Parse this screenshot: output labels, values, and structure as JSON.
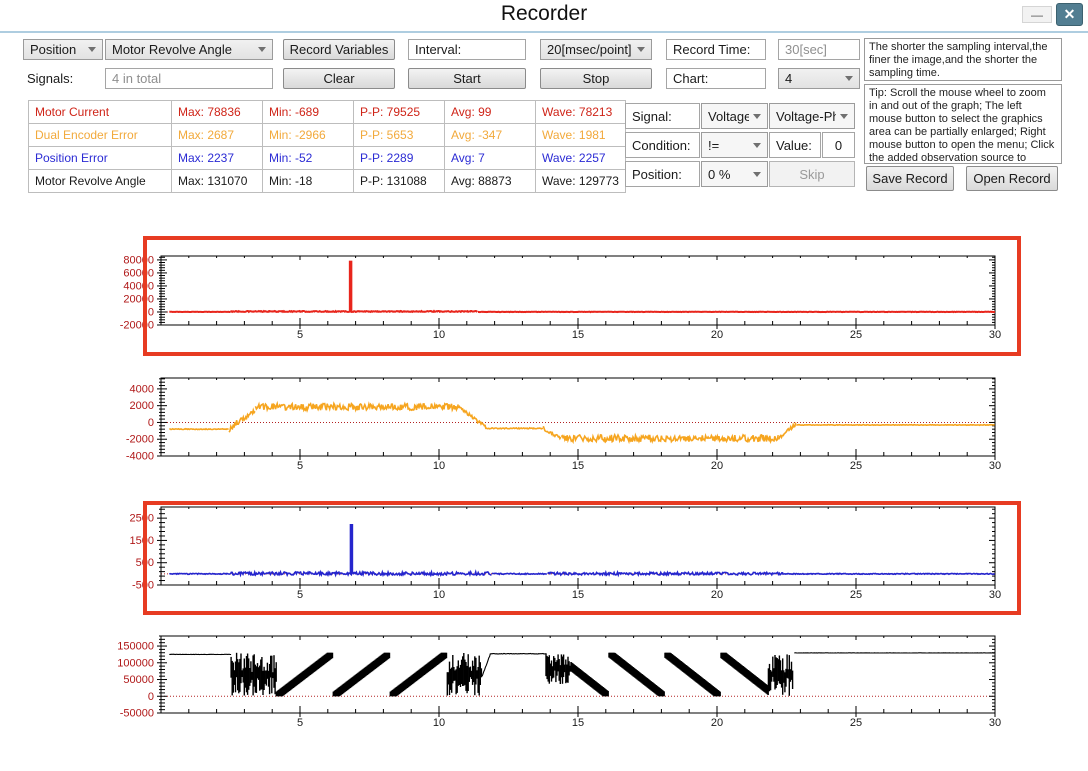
{
  "window": {
    "title": "Recorder"
  },
  "icons": {
    "minimize": "—",
    "close": "✕"
  },
  "colors": {
    "selection": "#e73b22",
    "axis_label": "#b01818",
    "zero_line": "#b22222"
  },
  "toolbar": {
    "position_dropdown": "Position",
    "source_dropdown": "Motor Revolve Angle",
    "record_variables": "Record Variables",
    "interval_label": "Interval:",
    "interval_value": "20[msec/point]",
    "record_time_label": "Record Time:",
    "record_time_value": "30[sec]",
    "signals_label": "Signals:",
    "signals_value": "4  in total",
    "clear": "Clear",
    "start": "Start",
    "stop": "Stop",
    "chart_label": "Chart:",
    "chart_count": "4"
  },
  "info": {
    "sampling_note": "The shorter the sampling interval,the finer the image,and the shorter the sampling time.",
    "tip": "Tip: Scroll the mouse wheel to zoom in and out of the graph; The left mouse button to select the graphics area can be partially enlarged; Right mouse button to open the menu; Click the added observation source to delete it."
  },
  "signal_table": {
    "rows": [
      {
        "name": "Motor Current",
        "color": "#cf2418",
        "max": "Max: 78836",
        "min": "Min: -689",
        "pp": "P-P: 79525",
        "avg": "Avg: 99",
        "wave": "Wave: 78213"
      },
      {
        "name": "Dual Encoder Error",
        "color": "#f2a93b",
        "max": "Max: 2687",
        "min": "Min: -2966",
        "pp": "P-P: 5653",
        "avg": "Avg: -347",
        "wave": "Wave: 1981"
      },
      {
        "name": "Position Error",
        "color": "#2b2bd4",
        "max": "Max: 2237",
        "min": "Min: -52",
        "pp": "P-P: 2289",
        "avg": "Avg: 7",
        "wave": "Wave: 2257"
      },
      {
        "name": "Motor Revolve Angle",
        "color": "#1a1a1a",
        "max": "Max: 131070",
        "min": "Min: -18",
        "pp": "P-P: 131088",
        "avg": "Avg: 88873",
        "wave": "Wave: 129773"
      }
    ]
  },
  "trigger": {
    "signal_label": "Signal:",
    "signal_value": "Voltage",
    "signal_phase_value": "Voltage-Ph",
    "condition_label": "Condition:",
    "condition_value": "!=",
    "value_label": "Value:",
    "value": "0",
    "position_label": "Position:",
    "position_value": "0 %",
    "skip": "Skip",
    "save": "Save Record",
    "open": "Open Record"
  },
  "chart_data": [
    {
      "type": "line",
      "name": "Motor Current",
      "color": "#e8251c",
      "selected": true,
      "xlim": [
        0,
        30
      ],
      "ylim": [
        -20000,
        86000
      ],
      "xticks": [
        5,
        10,
        15,
        20,
        25,
        30
      ],
      "yticks": [
        -20000,
        0,
        20000,
        40000,
        60000,
        80000
      ],
      "zero_line": true,
      "segments": [
        {
          "kind": "flat",
          "x0": 0.3,
          "x1": 2.5,
          "y": 150,
          "noise": 200
        },
        {
          "kind": "flat",
          "x0": 2.5,
          "x1": 11.4,
          "y": 800,
          "noise": 750
        },
        {
          "kind": "flat",
          "x0": 11.4,
          "x1": 30,
          "y": 150,
          "noise": 300
        },
        {
          "kind": "spike",
          "x": 6.82,
          "y": 78836,
          "base": 0
        }
      ]
    },
    {
      "type": "line",
      "name": "Dual Encoder Error",
      "color": "#f6a51f",
      "selected": false,
      "xlim": [
        0,
        30
      ],
      "ylim": [
        -4000,
        5300
      ],
      "xticks": [
        5,
        10,
        15,
        20,
        25,
        30
      ],
      "yticks": [
        -4000,
        -2000,
        0,
        2000,
        4000
      ],
      "zero_line": true,
      "segments": [
        {
          "kind": "flat",
          "x0": 0.3,
          "x1": 2.45,
          "y": -800,
          "noise": 50
        },
        {
          "kind": "ramp",
          "x0": 2.45,
          "x1": 3.4,
          "y0": -800,
          "y1": 1700,
          "noise": 400
        },
        {
          "kind": "flat",
          "x0": 3.4,
          "x1": 10.7,
          "y": 1850,
          "noise": 400
        },
        {
          "kind": "ramp",
          "x0": 10.7,
          "x1": 11.7,
          "y0": 1850,
          "y1": -650,
          "noise": 220
        },
        {
          "kind": "flat",
          "x0": 11.7,
          "x1": 13.75,
          "y": -700,
          "noise": 70
        },
        {
          "kind": "ramp",
          "x0": 13.75,
          "x1": 14.4,
          "y0": -700,
          "y1": -1800,
          "noise": 260
        },
        {
          "kind": "flat",
          "x0": 14.4,
          "x1": 22.2,
          "y": -1900,
          "noise": 420
        },
        {
          "kind": "ramp",
          "x0": 22.2,
          "x1": 22.85,
          "y0": -1900,
          "y1": -150,
          "noise": 220
        },
        {
          "kind": "flat",
          "x0": 22.85,
          "x1": 30,
          "y": -300,
          "noise": 35
        }
      ]
    },
    {
      "type": "line",
      "name": "Position Error",
      "color": "#2525cd",
      "selected": true,
      "xlim": [
        0,
        30
      ],
      "ylim": [
        -500,
        3000
      ],
      "xticks": [
        5,
        10,
        15,
        20,
        25,
        30
      ],
      "yticks": [
        -500,
        500,
        1500,
        2500
      ],
      "zero_line": true,
      "segments": [
        {
          "kind": "flat",
          "x0": 0.3,
          "x1": 2.5,
          "y": 0,
          "noise": 20
        },
        {
          "kind": "flat",
          "x0": 2.5,
          "x1": 11.9,
          "y": 15,
          "noise": 70
        },
        {
          "kind": "flat",
          "x0": 11.9,
          "x1": 13.9,
          "y": 0,
          "noise": 25
        },
        {
          "kind": "flat",
          "x0": 13.9,
          "x1": 22.4,
          "y": 10,
          "noise": 60
        },
        {
          "kind": "flat",
          "x0": 22.4,
          "x1": 30,
          "y": 0,
          "noise": 20
        },
        {
          "kind": "spike",
          "x": 6.85,
          "y": 2237,
          "base": 0
        }
      ]
    },
    {
      "type": "line",
      "name": "Motor Revolve Angle",
      "color": "#000000",
      "selected": false,
      "xlim": [
        0,
        30
      ],
      "ylim": [
        -50000,
        180000
      ],
      "xticks": [
        5,
        10,
        15,
        20,
        25,
        30
      ],
      "yticks": [
        -50000,
        0,
        50000,
        100000,
        150000
      ],
      "zero_line": true,
      "segments": [
        {
          "kind": "flat",
          "x0": 0.3,
          "x1": 2.52,
          "y": 125000,
          "noise": 600
        },
        {
          "kind": "burst",
          "x0": 2.52,
          "x1": 4.15,
          "min": 0,
          "max": 130000
        },
        {
          "kind": "bandsaw",
          "x0": 4.15,
          "x1": 10.3,
          "dir": "up",
          "period": 2.05,
          "phase0": 0,
          "ymin": 0,
          "ymax": 130000,
          "halfwidth": 14000
        },
        {
          "kind": "burst",
          "x0": 10.3,
          "x1": 11.55,
          "min": 0,
          "max": 130000
        },
        {
          "kind": "ramp",
          "x0": 11.55,
          "x1": 11.85,
          "y0": 60000,
          "y1": 127000,
          "noise": 1500
        },
        {
          "kind": "flat",
          "x0": 11.85,
          "x1": 13.85,
          "y": 127000,
          "noise": 700
        },
        {
          "kind": "burst",
          "x0": 13.85,
          "x1": 14.75,
          "min": 35000,
          "max": 130000
        },
        {
          "kind": "bandsaw",
          "x0": 14.75,
          "x1": 21.85,
          "dir": "down",
          "period": 2.0,
          "phase0": 0.32,
          "ymin": 0,
          "ymax": 130000,
          "halfwidth": 14000
        },
        {
          "kind": "burst",
          "x0": 21.85,
          "x1": 22.75,
          "min": 0,
          "max": 130000
        },
        {
          "kind": "flat",
          "x0": 22.78,
          "x1": 30,
          "y": 129500,
          "noise": 300
        }
      ]
    }
  ]
}
